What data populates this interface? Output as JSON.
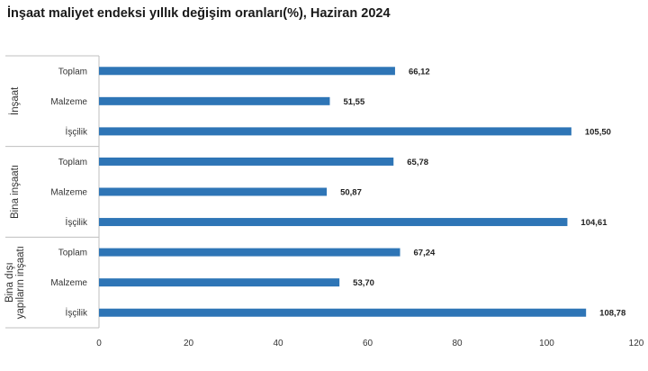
{
  "title": "İnşaat maliyet endeksi yıllık değişim oranları(%), Haziran 2024",
  "chart_data": {
    "type": "bar",
    "orientation": "horizontal",
    "title": "İnşaat maliyet endeksi yıllık değişim oranları(%), Haziran 2024",
    "bar_color": "#2e75b6",
    "xlim": [
      0,
      120
    ],
    "x_ticks": [
      "0",
      "20",
      "40",
      "60",
      "80",
      "100",
      "120"
    ],
    "grid": false,
    "groups": [
      {
        "name_lines": [
          "İnşaat"
        ],
        "bars": [
          {
            "category": "Toplam",
            "value": 66.12,
            "label": "66,12"
          },
          {
            "category": "Malzeme",
            "value": 51.55,
            "label": "51,55"
          },
          {
            "category": "İşçilik",
            "value": 105.5,
            "label": "105,50"
          }
        ]
      },
      {
        "name_lines": [
          "Bina inşaatı"
        ],
        "bars": [
          {
            "category": "Toplam",
            "value": 65.78,
            "label": "65,78"
          },
          {
            "category": "Malzeme",
            "value": 50.87,
            "label": "50,87"
          },
          {
            "category": "İşçilik",
            "value": 104.61,
            "label": "104,61"
          }
        ]
      },
      {
        "name_lines": [
          "Bina dışı",
          "yapıların inşaatı"
        ],
        "bars": [
          {
            "category": "Toplam",
            "value": 67.24,
            "label": "67,24"
          },
          {
            "category": "Malzeme",
            "value": 53.7,
            "label": "53,70"
          },
          {
            "category": "İşçilik",
            "value": 108.78,
            "label": "108,78"
          }
        ]
      }
    ]
  }
}
